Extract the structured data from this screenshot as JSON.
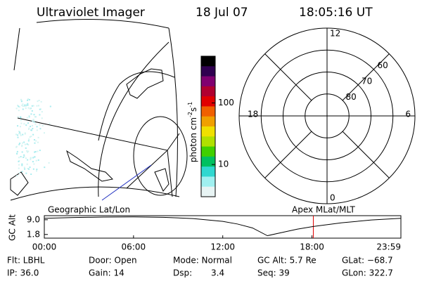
{
  "header": {
    "instrument": "Ultraviolet Imager",
    "date": "18 Jul 07",
    "time": "18:05:16 UT"
  },
  "colorbar": {
    "label": "photon cm",
    "exp1": "-2",
    "unit2": "s",
    "exp2": "-1",
    "log": true,
    "clim": [
      3,
      575
    ],
    "ticks": [
      10,
      100
    ]
  },
  "polar": {
    "rlim": [
      90,
      50
    ],
    "rings": [
      80,
      70,
      60
    ],
    "lat_ticks": [
      80,
      70,
      60
    ],
    "mlt_ticks": [
      12,
      6,
      0,
      18
    ]
  },
  "altitude": {
    "left_label": "Geographic Lat/Lon",
    "right_label": "Apex MLat/MLT",
    "ylabel": "GC Alt",
    "ylim": [
      0,
      11
    ],
    "yticks": [
      {
        "value": 9.0,
        "label": "9.0"
      },
      {
        "value": 1.8,
        "label": "1.8"
      }
    ],
    "xlim": [
      0,
      23.98
    ],
    "xticks": [
      {
        "value": 0,
        "label": "00:00"
      },
      {
        "value": 6,
        "label": "06:00"
      },
      {
        "value": 12,
        "label": "12:00"
      },
      {
        "value": 18,
        "label": "18:00"
      },
      {
        "value": 23.98,
        "label": "23:59"
      }
    ],
    "x": [
      0,
      2,
      4,
      6,
      8,
      10,
      12,
      13,
      14,
      15,
      16,
      17,
      18.09,
      20,
      22,
      23.98
    ],
    "values": [
      9.7,
      10.1,
      10.3,
      10.4,
      10.2,
      9.6,
      8.2,
      6.9,
      5.0,
      1.2,
      2.8,
      4.4,
      5.7,
      7.5,
      8.9,
      9.7
    ],
    "current_time": 18.09,
    "marker_color": "#e00000"
  },
  "footer": {
    "flt": "Flt: LBHL",
    "ip": "IP: 36.0",
    "door": "Door: Open",
    "gain": "Gain: 14",
    "mode": "Mode: Normal",
    "dsp": "Dsp:",
    "dsp_value": "3.4",
    "gc_alt": "GC Alt: 5.7 Re",
    "seq": "Seq: 39",
    "glat": "GLat: −68.7",
    "glon": "GLon: 322.7"
  }
}
